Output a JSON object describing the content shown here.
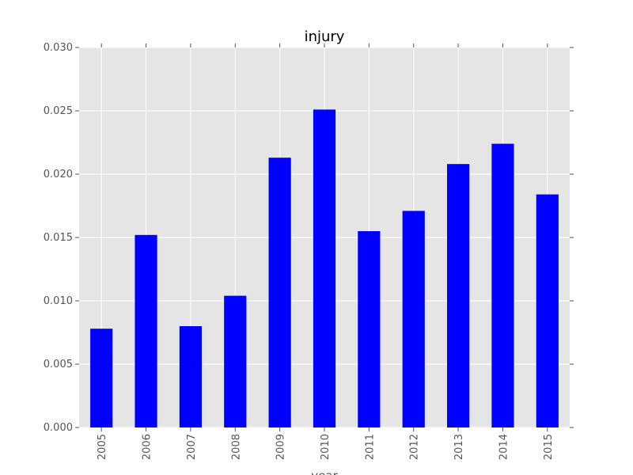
{
  "chart_data": {
    "type": "bar",
    "title": "injury",
    "xlabel": "year",
    "ylabel": "",
    "categories": [
      "2005",
      "2006",
      "2007",
      "2008",
      "2009",
      "2010",
      "2011",
      "2012",
      "2013",
      "2014",
      "2015"
    ],
    "values": [
      0.0078,
      0.0152,
      0.008,
      0.0104,
      0.0213,
      0.0251,
      0.0155,
      0.0171,
      0.0208,
      0.0224,
      0.0184
    ],
    "ylim": [
      0,
      0.03
    ],
    "yticks": [
      "0.000",
      "0.005",
      "0.010",
      "0.015",
      "0.020",
      "0.025",
      "0.030"
    ],
    "grid": true,
    "legend": "none",
    "colors": {
      "bar": "#0000ff",
      "plot_background": "#e5e5e5",
      "grid": "#ffffff",
      "tick_text": "#555555"
    }
  }
}
